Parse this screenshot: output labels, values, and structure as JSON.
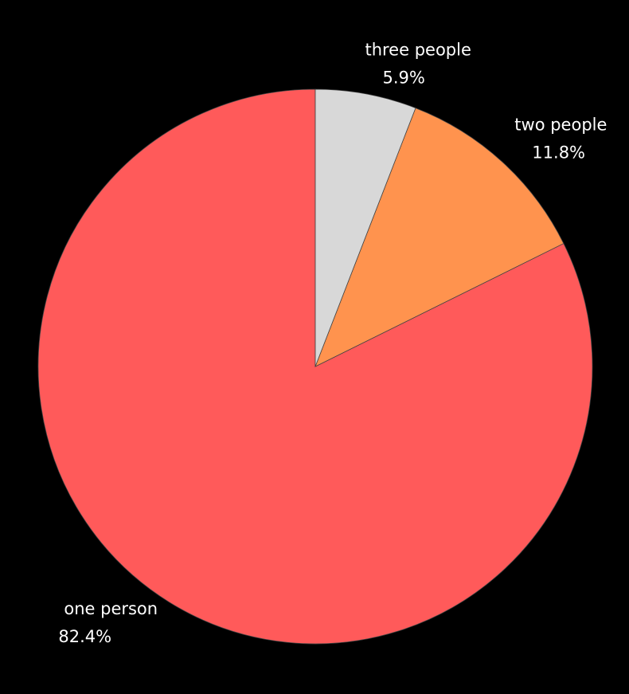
{
  "chart_data": {
    "type": "pie",
    "title": "",
    "start_angle_deg": 90,
    "direction": "counterclockwise",
    "slices": [
      {
        "label": "one person",
        "value": 82.4,
        "pct_label": "82.4%",
        "color": "#ff5a5a"
      },
      {
        "label": "two people",
        "value": 11.8,
        "pct_label": "11.8%",
        "color": "#ff934e"
      },
      {
        "label": "three people",
        "value": 5.9,
        "pct_label": "5.9%",
        "color": "#d8d8d8"
      }
    ],
    "background": "#000000",
    "edge_color": "#444444"
  }
}
